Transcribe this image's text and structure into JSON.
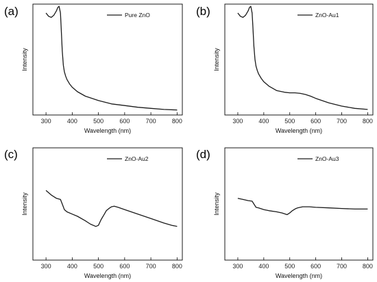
{
  "chart_data": [
    {
      "type": "line",
      "panel_label": "(a)",
      "xlabel": "Wavelength (nm)",
      "ylabel": "Intensity",
      "xlim": [
        250,
        820
      ],
      "ylim": [
        0,
        1
      ],
      "xticks": [
        300,
        400,
        500,
        600,
        700,
        800
      ],
      "yticks_shown": false,
      "legend_position": "top-right",
      "series": [
        {
          "name": "Pure ZnO",
          "x": [
            300,
            310,
            320,
            330,
            340,
            345,
            350,
            355,
            358,
            362,
            366,
            370,
            375,
            380,
            390,
            400,
            420,
            450,
            500,
            550,
            600,
            650,
            700,
            750,
            800
          ],
          "y": [
            0.92,
            0.89,
            0.88,
            0.9,
            0.94,
            0.97,
            0.98,
            0.92,
            0.78,
            0.58,
            0.45,
            0.39,
            0.35,
            0.32,
            0.28,
            0.25,
            0.21,
            0.17,
            0.13,
            0.1,
            0.085,
            0.07,
            0.06,
            0.05,
            0.045
          ]
        }
      ]
    },
    {
      "type": "line",
      "panel_label": "(b)",
      "xlabel": "Wavelength (nm)",
      "ylabel": "Intensity",
      "xlim": [
        250,
        820
      ],
      "ylim": [
        0,
        1
      ],
      "xticks": [
        300,
        400,
        500,
        600,
        700,
        800
      ],
      "yticks_shown": false,
      "legend_position": "top-right",
      "series": [
        {
          "name": "ZnO-Au1",
          "x": [
            300,
            310,
            320,
            330,
            340,
            345,
            350,
            355,
            358,
            362,
            366,
            370,
            375,
            380,
            390,
            400,
            420,
            450,
            480,
            500,
            520,
            540,
            560,
            580,
            600,
            650,
            700,
            750,
            800
          ],
          "y": [
            0.92,
            0.89,
            0.88,
            0.9,
            0.94,
            0.97,
            0.98,
            0.92,
            0.8,
            0.62,
            0.5,
            0.44,
            0.4,
            0.37,
            0.33,
            0.3,
            0.26,
            0.22,
            0.205,
            0.2,
            0.2,
            0.195,
            0.185,
            0.17,
            0.15,
            0.11,
            0.08,
            0.06,
            0.05
          ]
        }
      ]
    },
    {
      "type": "line",
      "panel_label": "(c)",
      "xlabel": "Wavelength (nm)",
      "ylabel": "Intensity",
      "xlim": [
        250,
        820
      ],
      "ylim": [
        0,
        1
      ],
      "xticks": [
        300,
        400,
        500,
        600,
        700,
        800
      ],
      "yticks_shown": false,
      "legend_position": "top-right",
      "series": [
        {
          "name": "ZnO-Au2",
          "x": [
            300,
            320,
            340,
            355,
            362,
            370,
            380,
            400,
            420,
            450,
            470,
            490,
            500,
            510,
            520,
            530,
            540,
            550,
            560,
            575,
            600,
            650,
            700,
            750,
            780,
            800
          ],
          "y": [
            0.62,
            0.58,
            0.55,
            0.54,
            0.5,
            0.45,
            0.43,
            0.41,
            0.39,
            0.35,
            0.32,
            0.3,
            0.31,
            0.36,
            0.4,
            0.44,
            0.46,
            0.475,
            0.48,
            0.47,
            0.45,
            0.41,
            0.37,
            0.33,
            0.31,
            0.3
          ]
        }
      ]
    },
    {
      "type": "line",
      "panel_label": "(d)",
      "xlabel": "Wavelength (nm)",
      "ylabel": "Intensity",
      "xlim": [
        250,
        820
      ],
      "ylim": [
        0,
        1
      ],
      "xticks": [
        300,
        400,
        500,
        600,
        700,
        800
      ],
      "yticks_shown": false,
      "legend_position": "top-right",
      "series": [
        {
          "name": "ZnO-Au3",
          "x": [
            300,
            320,
            340,
            355,
            362,
            370,
            380,
            400,
            420,
            450,
            470,
            490,
            500,
            510,
            520,
            530,
            540,
            550,
            560,
            575,
            600,
            650,
            700,
            750,
            800
          ],
          "y": [
            0.55,
            0.54,
            0.53,
            0.525,
            0.5,
            0.47,
            0.465,
            0.45,
            0.44,
            0.43,
            0.42,
            0.405,
            0.42,
            0.44,
            0.455,
            0.465,
            0.47,
            0.475,
            0.475,
            0.475,
            0.47,
            0.465,
            0.46,
            0.455,
            0.455
          ]
        }
      ]
    }
  ]
}
